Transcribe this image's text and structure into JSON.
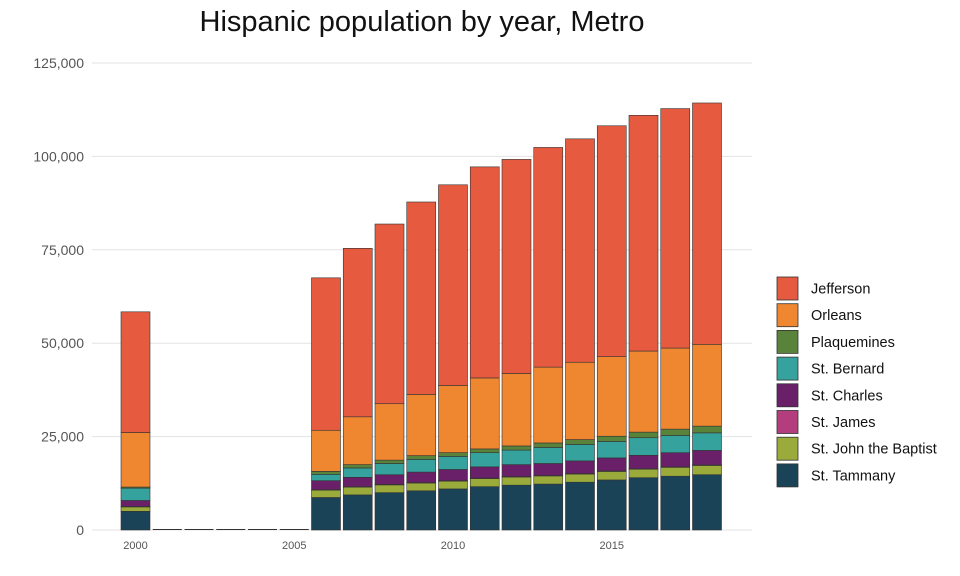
{
  "chart_data": {
    "type": "bar",
    "stacked": true,
    "title": "Hispanic population by year, Metro",
    "xlabel": "",
    "ylabel": "",
    "ylim": [
      0,
      125000
    ],
    "yticks": [
      0,
      25000,
      50000,
      75000,
      100000,
      125000
    ],
    "ytick_labels": [
      "0",
      "25,000",
      "50,000",
      "75,000",
      "100,000",
      "125,000"
    ],
    "xticks": [
      2000,
      2005,
      2010,
      2015
    ],
    "xtick_labels": [
      "2000",
      "2005",
      "2010",
      "2015"
    ],
    "xlim": [
      1999.5,
      2018.5
    ],
    "grid": "horizontal",
    "legend_position": "right",
    "x": [
      2000,
      2001,
      2002,
      2003,
      2004,
      2005,
      2006,
      2007,
      2008,
      2009,
      2010,
      2011,
      2012,
      2013,
      2014,
      2015,
      2016,
      2017,
      2018
    ],
    "series": [
      {
        "name": "St. Tammany",
        "color": "#1b4357",
        "values": [
          5000,
          0,
          0,
          0,
          0,
          0,
          8700,
          9400,
          10000,
          10500,
          11000,
          11600,
          12000,
          12300,
          12800,
          13400,
          14000,
          14400,
          14800
        ]
      },
      {
        "name": "St. John the Baptist",
        "color": "#9aab3b",
        "values": [
          1200,
          0,
          0,
          0,
          0,
          0,
          2000,
          2100,
          2100,
          2100,
          2100,
          2200,
          2200,
          2200,
          2200,
          2300,
          2300,
          2400,
          2500
        ]
      },
      {
        "name": "St. James",
        "color": "#b43e7d",
        "values": [
          100,
          0,
          0,
          0,
          0,
          0,
          100,
          100,
          100,
          100,
          100,
          100,
          100,
          100,
          100,
          100,
          100,
          100,
          100
        ]
      },
      {
        "name": "St. Charles",
        "color": "#6a2068",
        "values": [
          1600,
          0,
          0,
          0,
          0,
          0,
          2400,
          2500,
          2600,
          2800,
          3000,
          3000,
          3200,
          3200,
          3400,
          3500,
          3600,
          3800,
          3900
        ]
      },
      {
        "name": "St. Bernard",
        "color": "#35a29e",
        "values": [
          3300,
          0,
          0,
          0,
          0,
          0,
          1700,
          2500,
          3000,
          3400,
          3500,
          3800,
          3900,
          4300,
          4400,
          4400,
          4700,
          4600,
          4700
        ]
      },
      {
        "name": "Plaquemines",
        "color": "#59823a",
        "values": [
          300,
          0,
          0,
          0,
          0,
          0,
          800,
          900,
          900,
          1000,
          1000,
          1000,
          1100,
          1200,
          1300,
          1400,
          1500,
          1700,
          1800
        ]
      },
      {
        "name": "Orleans",
        "color": "#ef8630",
        "values": [
          14600,
          0,
          0,
          0,
          0,
          0,
          11000,
          12800,
          15100,
          16400,
          18000,
          19000,
          19400,
          20300,
          20700,
          21300,
          21700,
          21700,
          21900
        ]
      },
      {
        "name": "Jefferson",
        "color": "#e65b40",
        "values": [
          32300,
          0,
          0,
          0,
          0,
          0,
          40800,
          45100,
          48100,
          51500,
          53700,
          56500,
          57300,
          58800,
          59800,
          61800,
          63100,
          64100,
          64600
        ]
      }
    ],
    "legend_order": [
      "Jefferson",
      "Orleans",
      "Plaquemines",
      "St. Bernard",
      "St. Charles",
      "St. James",
      "St. John the Baptist",
      "St. Tammany"
    ]
  }
}
